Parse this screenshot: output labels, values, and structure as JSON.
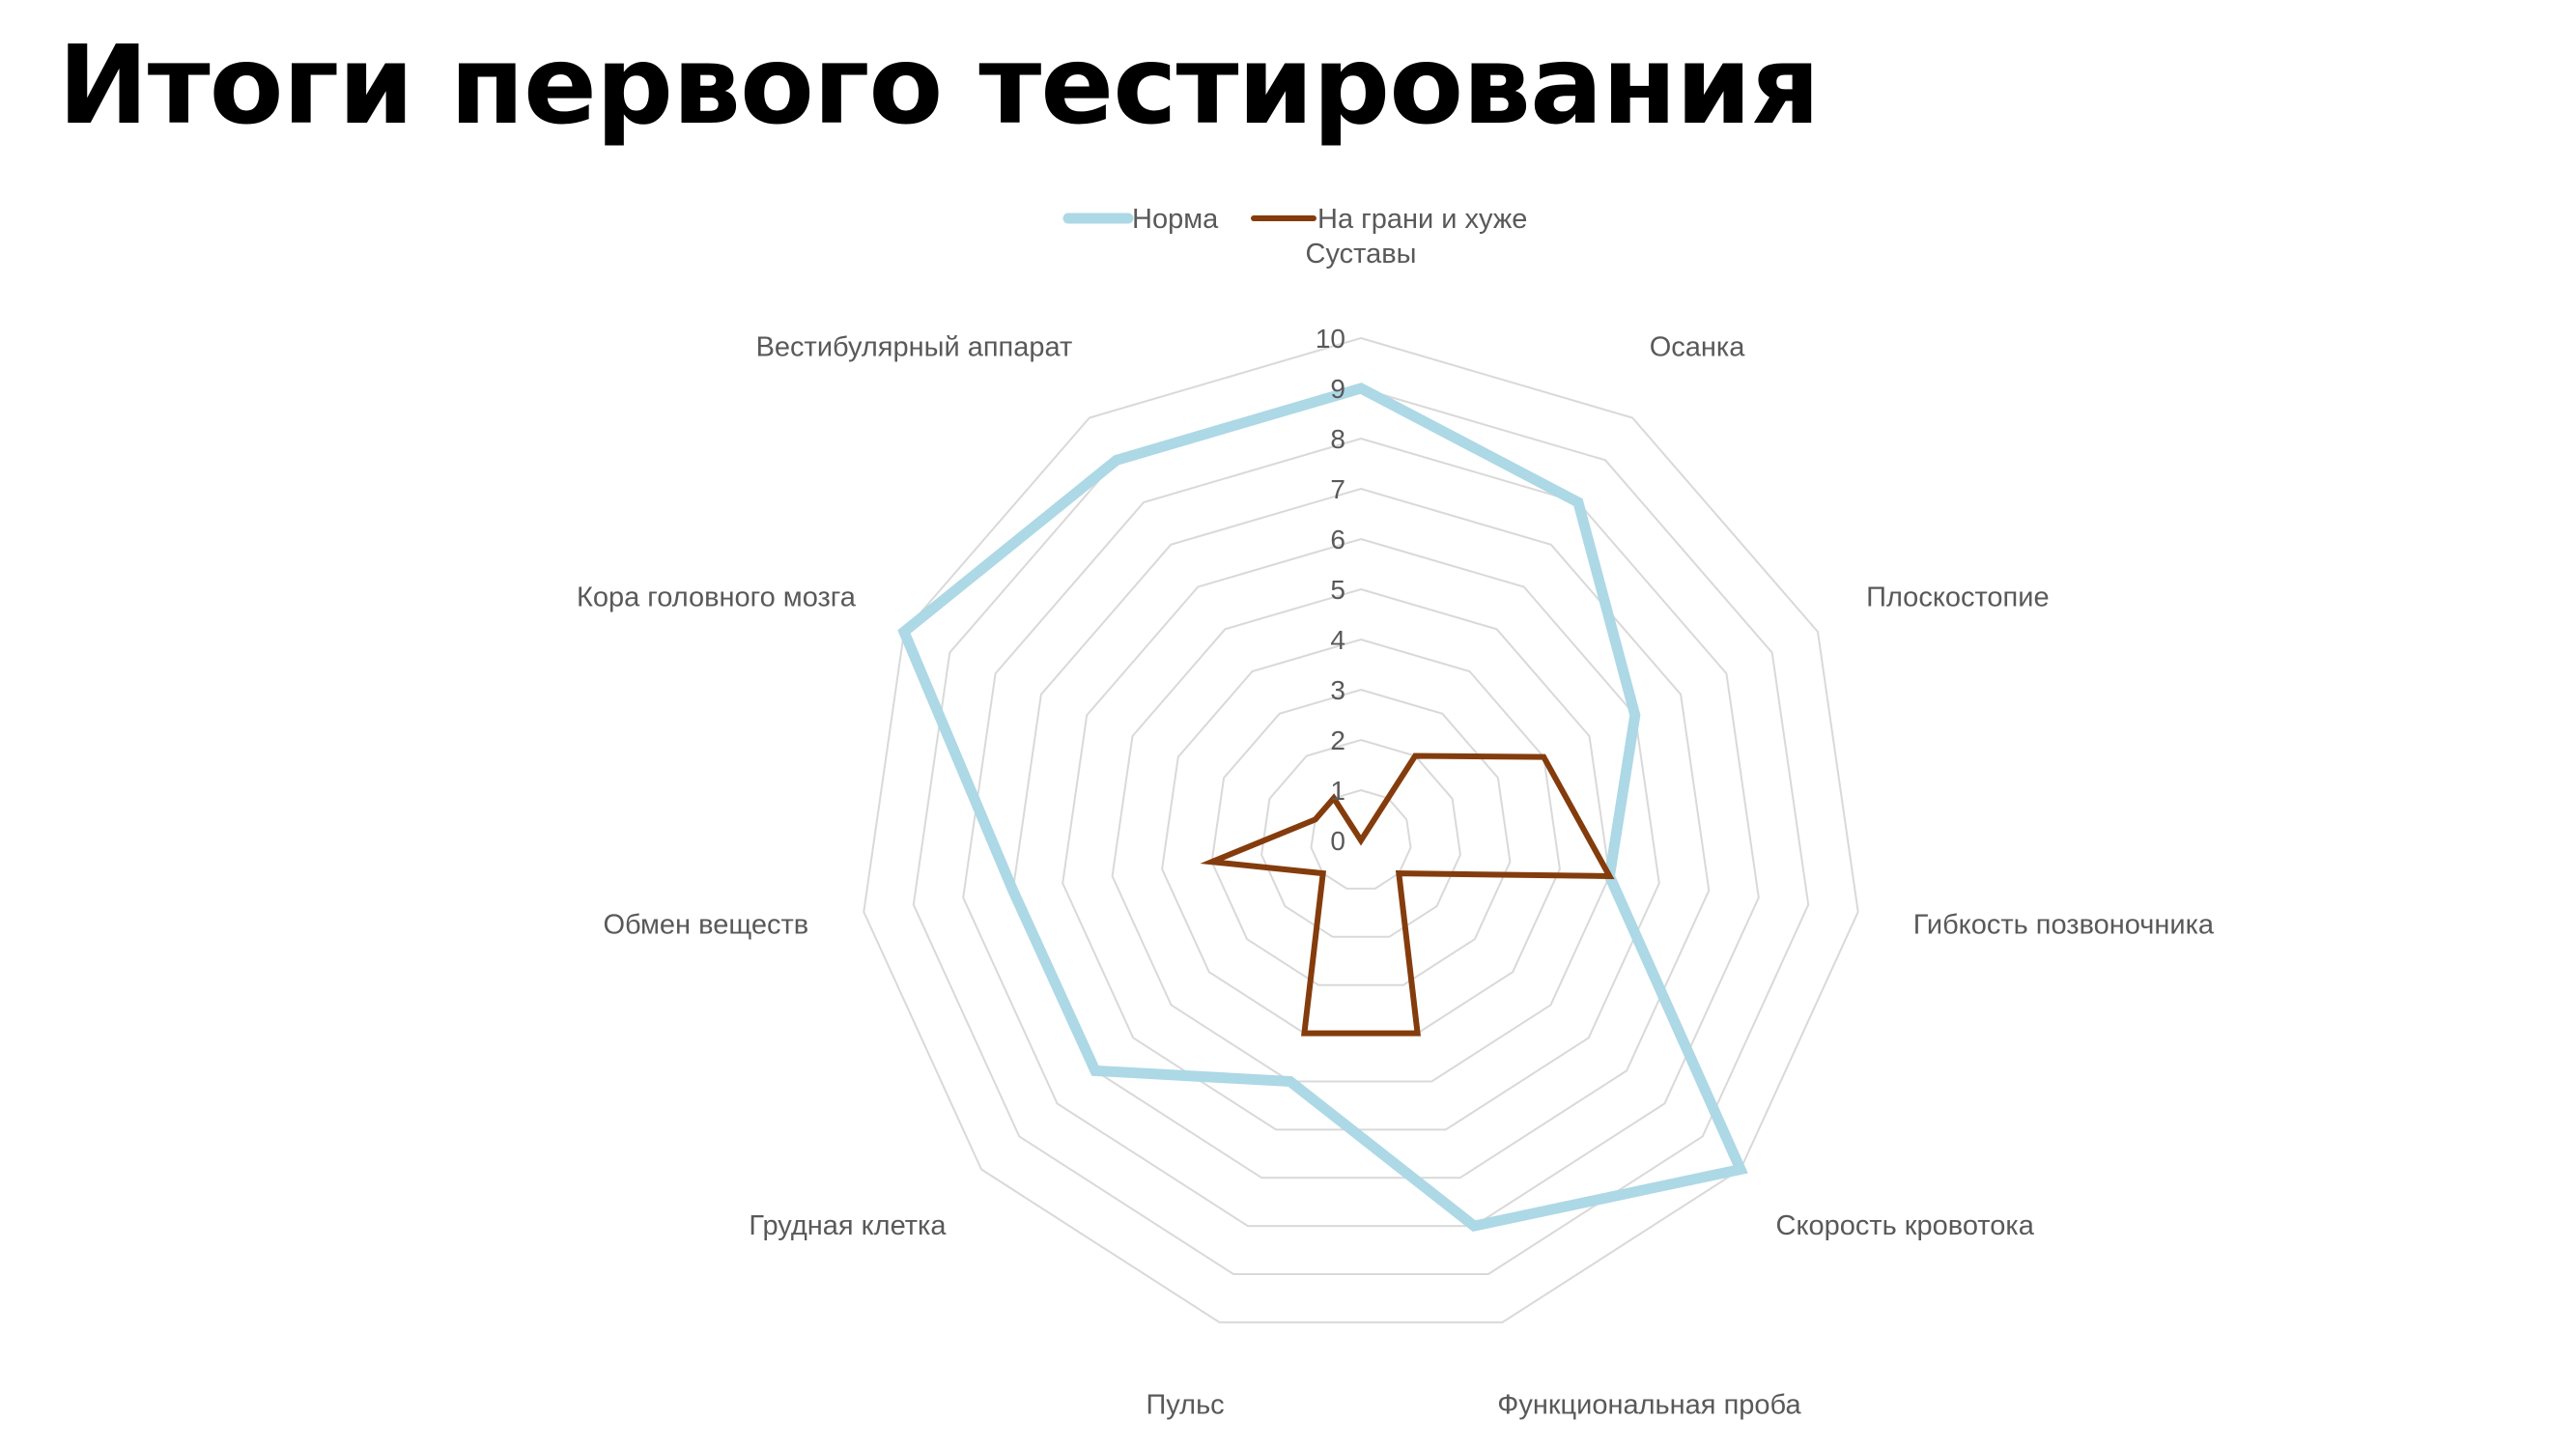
{
  "title": "Итоги первого тестирования",
  "chart_data": {
    "type": "radar",
    "title": "",
    "categories": [
      "Суставы",
      "Осанка",
      "Плоскостопие",
      "Гибкость позвоночника",
      "Скорость кровотока",
      "Функциональная проба",
      "Пульс",
      "Грудная клетка",
      "Обмен веществ",
      "Кора головного мозга",
      "Вестибулярный аппарат"
    ],
    "rlim": [
      0,
      10
    ],
    "ticks": [
      "0",
      "1",
      "2",
      "3",
      "4",
      "5",
      "6",
      "7",
      "8",
      "9",
      "10"
    ],
    "grid": true,
    "legend": "top",
    "series": [
      {
        "name": "Норма",
        "values": [
          9,
          8,
          6,
          5,
          10,
          8,
          5,
          7,
          7,
          10,
          9
        ],
        "color": "#ADD8E6"
      },
      {
        "name": "На грани и хуже",
        "values": [
          0,
          2,
          4,
          5,
          1,
          4,
          4,
          1,
          3,
          1,
          1
        ],
        "color": "#843C0C"
      }
    ]
  }
}
